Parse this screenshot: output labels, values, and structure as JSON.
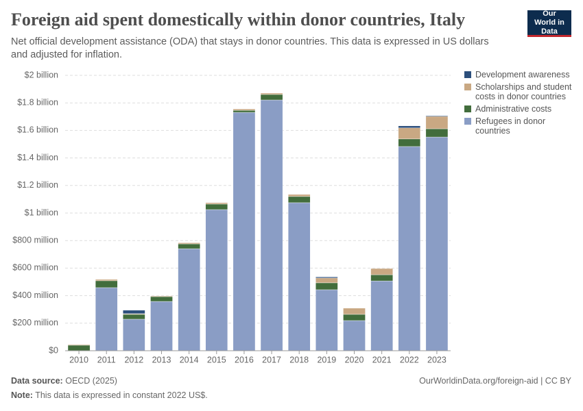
{
  "chart_data": {
    "type": "stacked_bar",
    "title": "Foreign aid spent domestically within donor countries, Italy",
    "subtitle": "Net official development assistance (ODA) that stays in donor countries. This data is expressed in US dollars and adjusted for inflation.",
    "logo": "Our World in Data",
    "categories": [
      "2010",
      "2011",
      "2012",
      "2013",
      "2014",
      "2015",
      "2016",
      "2017",
      "2018",
      "2019",
      "2020",
      "2021",
      "2022",
      "2023"
    ],
    "series": [
      {
        "name": "Refugees in donor countries",
        "color": "#8a9dc5",
        "values": [
          0,
          458000000,
          229000000,
          358000000,
          741000000,
          1025000000,
          1731000000,
          1821000000,
          1075000000,
          443000000,
          219000000,
          507000000,
          1483000000,
          1552000000
        ]
      },
      {
        "name": "Administrative costs",
        "color": "#426d3c",
        "values": [
          40000000,
          50000000,
          35000000,
          35000000,
          35000000,
          40000000,
          15000000,
          40000000,
          45000000,
          50000000,
          45000000,
          45000000,
          55000000,
          60000000
        ]
      },
      {
        "name": "Scholarships and student costs in donor countries",
        "color": "#c9a883",
        "values": [
          5000000,
          10000000,
          5000000,
          5000000,
          8000000,
          10000000,
          10000000,
          10000000,
          15000000,
          35000000,
          45000000,
          45000000,
          80000000,
          90000000
        ]
      },
      {
        "name": "Development awareness",
        "color": "#2c4f7c",
        "values": [
          0,
          0,
          25000000,
          0,
          0,
          0,
          0,
          0,
          0,
          8000000,
          0,
          0,
          15000000,
          5000000
        ]
      }
    ],
    "ylim": [
      0,
      2000000000
    ],
    "yticks": [
      {
        "value": 0,
        "label": "$0"
      },
      {
        "value": 200000000,
        "label": "$200 million"
      },
      {
        "value": 400000000,
        "label": "$400 million"
      },
      {
        "value": 600000000,
        "label": "$600 million"
      },
      {
        "value": 800000000,
        "label": "$800 million"
      },
      {
        "value": 1000000000,
        "label": "$1 billion"
      },
      {
        "value": 1200000000,
        "label": "$1.2 billion"
      },
      {
        "value": 1400000000,
        "label": "$1.4 billion"
      },
      {
        "value": 1600000000,
        "label": "$1.6 billion"
      },
      {
        "value": 1800000000,
        "label": "$1.8 billion"
      },
      {
        "value": 2000000000,
        "label": "$2 billion"
      }
    ],
    "grid": true,
    "source_label": "Data source:",
    "source": "OECD (2025)",
    "note_label": "Note:",
    "note": "This data is expressed in constant 2022 US$.",
    "url": "OurWorldinData.org/foreign-aid | CC BY"
  }
}
